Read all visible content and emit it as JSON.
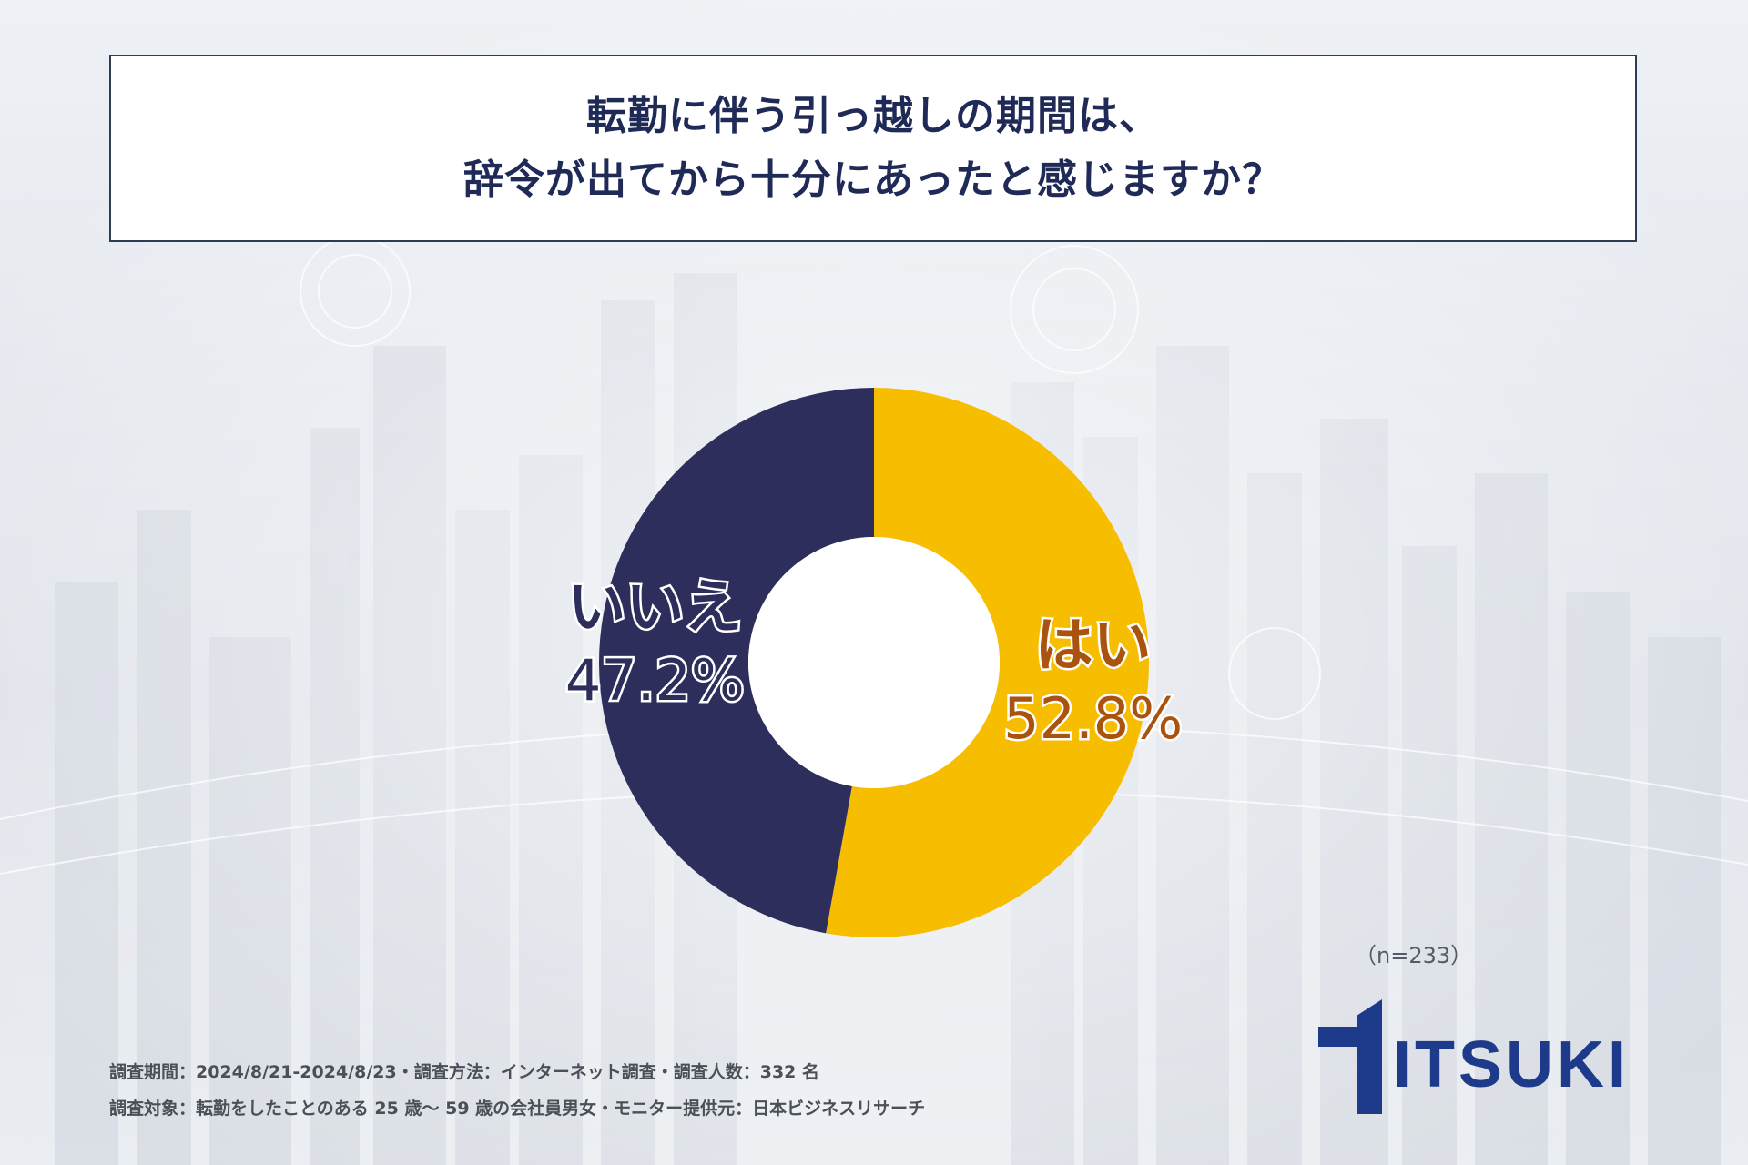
{
  "title": {
    "line1": "転勤に伴う引っ越しの期間は、",
    "line2": "辞令が出てから十分にあったと感じますか？"
  },
  "chart_data": {
    "type": "pie",
    "donut": true,
    "slices": [
      {
        "label": "はい",
        "value": 52.8,
        "display": "52.8%",
        "color": "#f7bd00",
        "text_color": "#a9530f"
      },
      {
        "label": "いいえ",
        "value": 47.2,
        "display": "47.2%",
        "color": "#2e2e5c",
        "text_color": "#2e2e5c"
      }
    ],
    "start": "top",
    "direction": "clockwise"
  },
  "sample_note": "（n=233）",
  "footer": {
    "line1": "調査期間：2024/8/21-2024/8/23・調査方法：インターネット調査・調査人数：332 名",
    "line2": "調査対象：転勤をしたことのある 25 歳〜 59 歳の会社員男女・モニター提供元：日本ビジネスリサーチ"
  },
  "logo": {
    "text": "ITSUKI",
    "color": "#1e3a8a"
  }
}
